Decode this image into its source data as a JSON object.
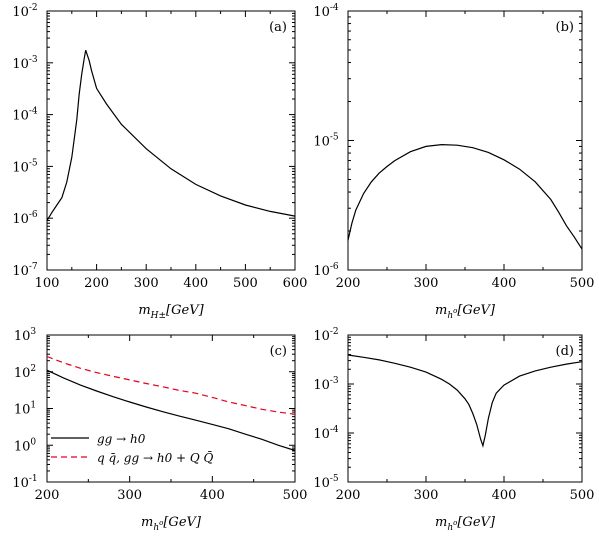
{
  "chart_data": [
    {
      "id": "a",
      "type": "line",
      "panel_label": "(a)",
      "xlabel": "m_{H±}[GeV]",
      "ylabel": "",
      "xscale": "linear",
      "yscale": "log",
      "xlim": [
        100,
        600
      ],
      "ylim": [
        1e-07,
        0.01
      ],
      "xticks": [
        100,
        200,
        300,
        400,
        500,
        600
      ],
      "xtick_labels": [
        "100",
        "200",
        "300",
        "400",
        "500",
        "600"
      ],
      "yticks": [
        1e-07,
        1e-06,
        1e-05,
        0.0001,
        0.001,
        0.01
      ],
      "ytick_labels": [
        [
          "10",
          "-7"
        ],
        [
          "10",
          "-6"
        ],
        [
          "10",
          "-5"
        ],
        [
          "10",
          "-4"
        ],
        [
          "10",
          "-3"
        ],
        [
          "10",
          "-2"
        ]
      ],
      "grid": false,
      "series": [
        {
          "color": "#000000",
          "dash": "",
          "x": [
            100,
            110,
            120,
            130,
            140,
            150,
            160,
            165,
            170,
            175,
            178,
            185,
            190,
            200,
            220,
            250,
            300,
            350,
            400,
            450,
            500,
            550,
            600
          ],
          "y": [
            9e-07,
            1.3e-06,
            1.8e-06,
            2.5e-06,
            5e-06,
            1.5e-05,
            8e-05,
            0.00025,
            0.0006,
            0.0012,
            0.00175,
            0.0011,
            0.0007,
            0.00032,
            0.00016,
            6.5e-05,
            2.2e-05,
            9e-06,
            4.5e-06,
            2.7e-06,
            1.8e-06,
            1.35e-06,
            1.1e-06
          ]
        }
      ]
    },
    {
      "id": "b",
      "type": "line",
      "panel_label": "(b)",
      "xlabel": "m_{h0}[GeV]",
      "ylabel": "",
      "xscale": "linear",
      "yscale": "log",
      "xlim": [
        200,
        500
      ],
      "ylim": [
        1e-06,
        0.0001
      ],
      "xticks": [
        200,
        300,
        400,
        500
      ],
      "xtick_labels": [
        "200",
        "300",
        "400",
        "500"
      ],
      "yticks": [
        1e-06,
        1e-05,
        0.0001
      ],
      "ytick_labels": [
        [
          "10",
          "-6"
        ],
        [
          "10",
          "-5"
        ],
        [
          "10",
          "-4"
        ]
      ],
      "grid": false,
      "series": [
        {
          "color": "#000000",
          "dash": "",
          "x": [
            200,
            205,
            210,
            220,
            230,
            240,
            250,
            260,
            280,
            300,
            320,
            340,
            360,
            380,
            400,
            420,
            440,
            460,
            470,
            480,
            490,
            500
          ],
          "y": [
            1.7e-06,
            2.3e-06,
            2.9e-06,
            3.9e-06,
            4.8e-06,
            5.6e-06,
            6.3e-06,
            7e-06,
            8.2e-06,
            9e-06,
            9.3e-06,
            9.2e-06,
            8.8e-06,
            8.1e-06,
            7.1e-06,
            6e-06,
            4.8e-06,
            3.5e-06,
            2.8e-06,
            2.2e-06,
            1.8e-06,
            1.45e-06
          ]
        }
      ]
    },
    {
      "id": "c",
      "type": "line",
      "panel_label": "(c)",
      "xlabel": "m_{h0}[GeV]",
      "ylabel": "",
      "xscale": "linear",
      "yscale": "log",
      "xlim": [
        200,
        500
      ],
      "ylim": [
        0.1,
        1000
      ],
      "xticks": [
        200,
        300,
        400,
        500
      ],
      "xtick_labels": [
        "200",
        "300",
        "400",
        "500"
      ],
      "yticks": [
        0.1,
        1,
        10,
        100,
        1000
      ],
      "ytick_labels": [
        [
          "10",
          "-1"
        ],
        [
          "10",
          "0"
        ],
        [
          "10",
          "1"
        ],
        [
          "10",
          "2"
        ],
        [
          "10",
          "3"
        ]
      ],
      "grid": false,
      "legend_position": "lower-left",
      "series": [
        {
          "name": "gg → h0",
          "color": "#000000",
          "dash": "",
          "x": [
            200,
            220,
            240,
            260,
            280,
            300,
            320,
            340,
            360,
            380,
            400,
            420,
            440,
            460,
            480,
            500
          ],
          "y": [
            110,
            68,
            44,
            30,
            21,
            15,
            11,
            8.2,
            6.2,
            4.8,
            3.7,
            2.8,
            2.0,
            1.45,
            1.0,
            0.72
          ]
        },
        {
          "name": "q q̄, gg → h0 + Q Q̄",
          "color": "#e4001c",
          "dash": "6,4",
          "x": [
            200,
            220,
            240,
            260,
            280,
            300,
            320,
            340,
            360,
            380,
            400,
            420,
            440,
            460,
            480,
            500
          ],
          "y": [
            260,
            175,
            125,
            95,
            75,
            60,
            48,
            39,
            31,
            26,
            20,
            15,
            12,
            9.5,
            8.0,
            7.0
          ]
        }
      ]
    },
    {
      "id": "d",
      "type": "line",
      "panel_label": "(d)",
      "xlabel": "m_{h0}[GeV]",
      "ylabel": "",
      "xscale": "linear",
      "yscale": "log",
      "xlim": [
        200,
        500
      ],
      "ylim": [
        1e-05,
        0.01
      ],
      "xticks": [
        200,
        300,
        400,
        500
      ],
      "xtick_labels": [
        "200",
        "300",
        "400",
        "500"
      ],
      "yticks": [
        1e-05,
        0.0001,
        0.001,
        0.01
      ],
      "ytick_labels": [
        [
          "10",
          "-5"
        ],
        [
          "10",
          "-4"
        ],
        [
          "10",
          "-3"
        ],
        [
          "10",
          "-2"
        ]
      ],
      "grid": false,
      "series": [
        {
          "color": "#000000",
          "dash": "",
          "x": [
            200,
            220,
            240,
            260,
            280,
            300,
            320,
            330,
            340,
            350,
            355,
            360,
            365,
            370,
            373,
            376,
            380,
            385,
            390,
            400,
            420,
            440,
            460,
            480,
            500
          ],
          "y": [
            0.0039,
            0.0035,
            0.0031,
            0.00265,
            0.0022,
            0.00175,
            0.00125,
            0.001,
            0.00075,
            0.0005,
            0.00038,
            0.00025,
            0.00015,
            7.5e-05,
            5.5e-05,
            9e-05,
            0.0002,
            0.00042,
            0.00065,
            0.00095,
            0.00145,
            0.00185,
            0.0022,
            0.00255,
            0.00285
          ]
        }
      ]
    }
  ]
}
